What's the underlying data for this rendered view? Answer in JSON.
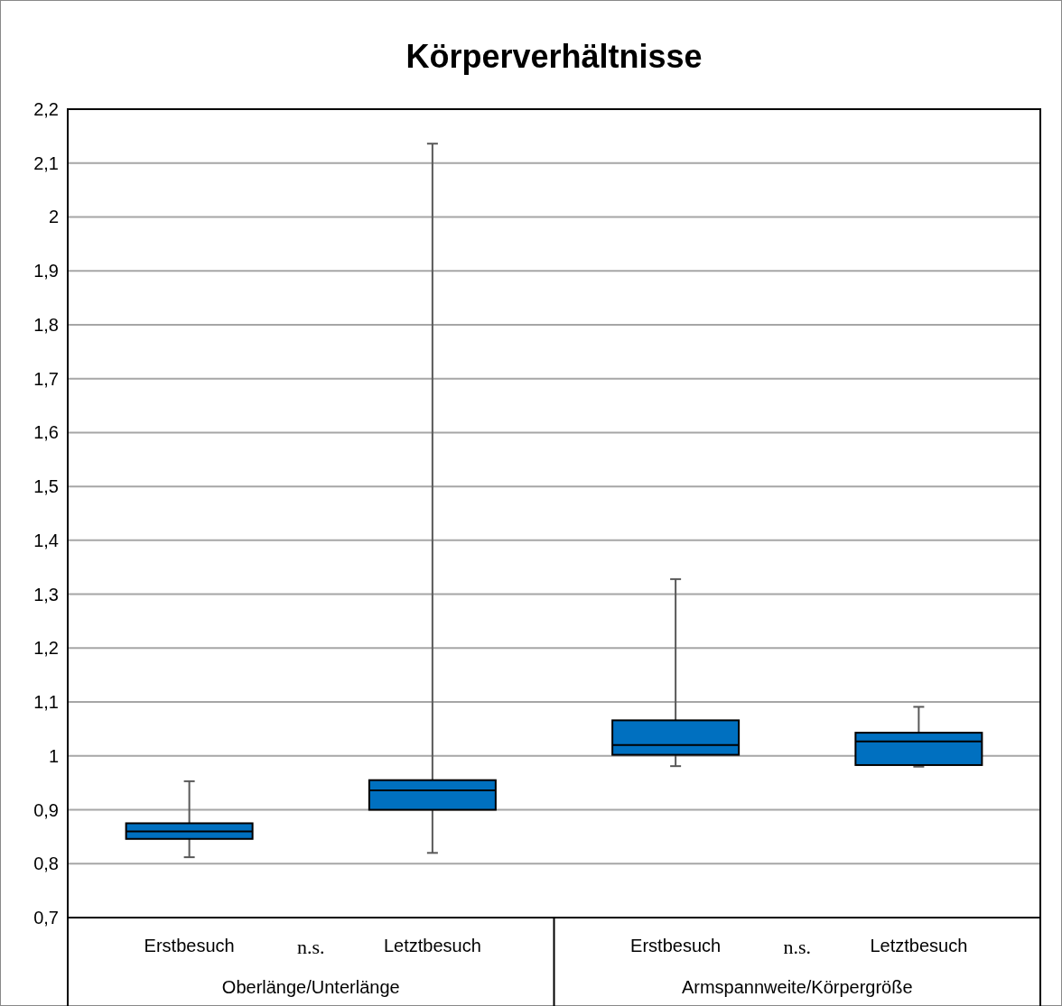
{
  "chart_data": {
    "type": "box",
    "title": "Körperverhältnisse",
    "categories": [
      "Erstbesuch",
      "Letztbesuch",
      "Erstbesuch",
      "Letztbesuch"
    ],
    "boxes": [
      {
        "low": 0.812,
        "q1": 0.846,
        "median": 0.86,
        "q3": 0.875,
        "high": 0.953
      },
      {
        "low": 0.82,
        "q1": 0.9,
        "median": 0.936,
        "q3": 0.955,
        "high": 2.136
      },
      {
        "low": 0.981,
        "q1": 1.002,
        "median": 1.02,
        "q3": 1.066,
        "high": 1.328
      },
      {
        "low": 0.98,
        "q1": 0.983,
        "median": 1.027,
        "q3": 1.043,
        "high": 1.091
      }
    ],
    "color": "#0070c0",
    "ylim": [
      0.7,
      2.2
    ],
    "yticks": [
      {
        "value": 0.7,
        "label": "0,7"
      },
      {
        "value": 0.8,
        "label": "0,8"
      },
      {
        "value": 0.9,
        "label": "0,9"
      },
      1,
      {
        "value": 1.1,
        "label": "1,1"
      },
      {
        "value": 1.2,
        "label": "1,2"
      },
      {
        "value": 1.3,
        "label": "1,3"
      },
      {
        "value": 1.4,
        "label": "1,4"
      },
      {
        "value": 1.5,
        "label": "1,5"
      },
      {
        "value": 1.6,
        "label": "1,6"
      },
      {
        "value": 1.7,
        "label": "1,7"
      },
      {
        "value": 1.8,
        "label": "1,8"
      },
      {
        "value": 1.9,
        "label": "1,9"
      },
      2,
      {
        "value": 2.1,
        "label": "2,1"
      },
      {
        "value": 2.2,
        "label": "2,2"
      }
    ],
    "grid": "y",
    "annotations": [
      "n.s.",
      "n.s.",
      "Oberlänge/Unterlänge",
      "Armspannweite/Körpergröße"
    ]
  }
}
